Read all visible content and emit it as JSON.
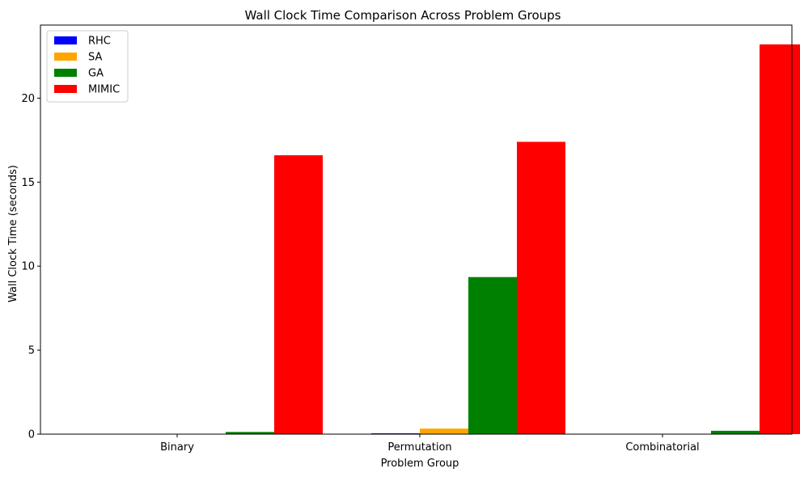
{
  "chart_data": {
    "type": "bar",
    "title": "Wall Clock Time Comparison Across Problem Groups",
    "xlabel": "Problem Group",
    "ylabel": "Wall Clock Time (seconds)",
    "categories": [
      "Binary",
      "Permutation",
      "Combinatorial"
    ],
    "series": [
      {
        "name": "RHC",
        "color": "#0000ff",
        "values": [
          0.004,
          0.05,
          0.003
        ]
      },
      {
        "name": "SA",
        "color": "#ffa500",
        "values": [
          0.01,
          0.33,
          0.02
        ]
      },
      {
        "name": "GA",
        "color": "#008000",
        "values": [
          0.13,
          9.35,
          0.2
        ]
      },
      {
        "name": "MIMIC",
        "color": "#ff0000",
        "values": [
          16.6,
          17.4,
          23.2
        ]
      }
    ],
    "ylim": [
      0,
      24.35
    ],
    "yticks": [
      0,
      5,
      10,
      15,
      20
    ],
    "legend_position": "top-left",
    "grid": false
  }
}
